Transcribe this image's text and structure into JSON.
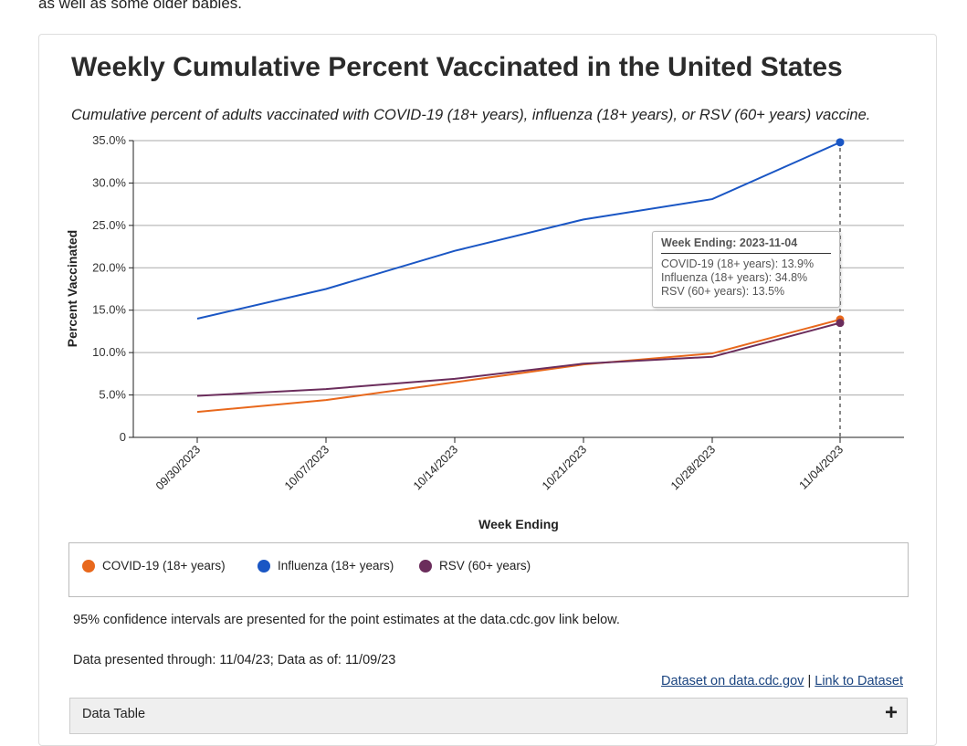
{
  "intro_text": "as well as some older babies.",
  "title": "Weekly Cumulative Percent Vaccinated in the United States",
  "subtitle": "Cumulative percent of adults vaccinated with COVID-19 (18+ years), influenza (18+ years), or RSV (60+ years) vaccine.",
  "chart_data": {
    "type": "line",
    "xlabel": "Week Ending",
    "ylabel": "Percent Vaccinated",
    "ylim": [
      0,
      35
    ],
    "y_ticks": [
      "0",
      "5.0%",
      "10.0%",
      "15.0%",
      "20.0%",
      "25.0%",
      "30.0%",
      "35.0%"
    ],
    "y_tick_values": [
      0,
      5,
      10,
      15,
      20,
      25,
      30,
      35
    ],
    "categories": [
      "09/30/2023",
      "10/07/2023",
      "10/14/2023",
      "10/21/2023",
      "10/28/2023",
      "11/04/2023"
    ],
    "grid": true,
    "series": [
      {
        "name": "COVID-19 (18+ years)",
        "color": "#e8681c",
        "values": [
          3.0,
          4.4,
          6.5,
          8.6,
          9.9,
          13.9
        ]
      },
      {
        "name": "Influenza (18+ years)",
        "color": "#1a56c4",
        "values": [
          14.0,
          17.5,
          22.0,
          25.7,
          28.1,
          34.8
        ]
      },
      {
        "name": "RSV (60+ years)",
        "color": "#6b2d5c",
        "values": [
          4.9,
          5.7,
          6.9,
          8.7,
          9.5,
          13.5
        ]
      }
    ],
    "legend_position": "bottom",
    "highlighted_index": 5
  },
  "tooltip": {
    "header": "Week Ending: 2023-11-04",
    "lines": [
      "COVID-19 (18+ years): 13.9%",
      "Influenza (18+ years): 34.8%",
      "RSV (60+ years): 13.5%"
    ]
  },
  "notes": {
    "ci": "95% confidence intervals are presented for the point estimates at the data.cdc.gov link below.",
    "through": "Data presented through: 11/04/23; Data as of: 11/09/23"
  },
  "links": {
    "dataset": "Dataset on data.cdc.gov",
    "sep": "|",
    "link": "Link to Dataset"
  },
  "data_table": {
    "label": "Data Table",
    "expand": "+"
  }
}
